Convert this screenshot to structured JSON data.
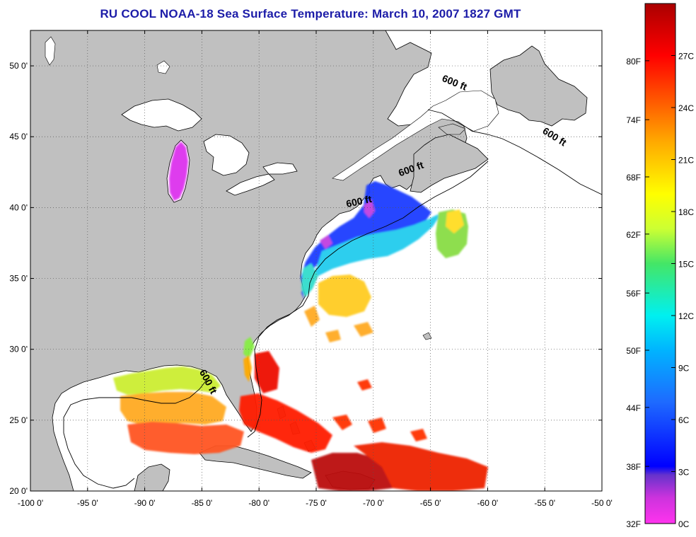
{
  "title": "RU COOL  NOAA-18  Sea Surface Temperature:  March 10, 2007 1827 GMT",
  "map": {
    "lon_range": [
      -100,
      -50
    ],
    "lat_range": [
      20,
      52.5
    ],
    "lon_ticks": [
      {
        "value": -100,
        "label": "-100 0'"
      },
      {
        "value": -95,
        "label": "-95 0'"
      },
      {
        "value": -90,
        "label": "-90 0'"
      },
      {
        "value": -85,
        "label": "-85 0'"
      },
      {
        "value": -80,
        "label": "-80 0'"
      },
      {
        "value": -75,
        "label": "-75 0'"
      },
      {
        "value": -70,
        "label": "-70 0'"
      },
      {
        "value": -65,
        "label": "-65 0'"
      },
      {
        "value": -60,
        "label": "-60 0'"
      },
      {
        "value": -55,
        "label": "-55 0'"
      },
      {
        "value": -50,
        "label": "-50 0'"
      }
    ],
    "lat_ticks": [
      {
        "value": 50,
        "label": "50 0'"
      },
      {
        "value": 45,
        "label": "45 0'"
      },
      {
        "value": 40,
        "label": "40 0'"
      },
      {
        "value": 35,
        "label": "35 0'"
      },
      {
        "value": 30,
        "label": "30 0'"
      },
      {
        "value": 25,
        "label": "25 0'"
      },
      {
        "value": 20,
        "label": "20 0'"
      }
    ],
    "contour_labels": [
      {
        "text": "600 ft",
        "lon": -63,
        "lat": 48.6,
        "angle": 22
      },
      {
        "text": "600 ft",
        "lon": -54.3,
        "lat": 44.8,
        "angle": 32
      },
      {
        "text": "600 ft",
        "lon": -66.6,
        "lat": 42.5,
        "angle": -20
      },
      {
        "text": "600 ft",
        "lon": -71.2,
        "lat": 40.2,
        "angle": -12
      },
      {
        "text": "600 ft",
        "lon": -84.7,
        "lat": 27.6,
        "angle": 62
      }
    ],
    "colors": {
      "land": "#c0c0c0",
      "ocean": "#ffffff",
      "coast": "#000000",
      "grid": "#555555"
    }
  },
  "colorbar": {
    "range_c": [
      0,
      30
    ],
    "left_labels": [
      "80F",
      "74F",
      "68F",
      "62F",
      "56F",
      "50F",
      "44F",
      "38F",
      "32F"
    ],
    "left_values_c": [
      26.7,
      23.3,
      20,
      16.7,
      13.3,
      10,
      6.7,
      3.3,
      0
    ],
    "right_labels": [
      "27C",
      "24C",
      "21C",
      "18C",
      "15C",
      "12C",
      "9C",
      "6C",
      "3C",
      "0C"
    ],
    "right_values_c": [
      27,
      24,
      21,
      18,
      15,
      12,
      9,
      6,
      3,
      0
    ],
    "stops": [
      {
        "c": 0,
        "color": "#ff33ee"
      },
      {
        "c": 1.5,
        "color": "#cc33dd"
      },
      {
        "c": 2.8,
        "color": "#6633cc"
      },
      {
        "c": 3.3,
        "color": "#0000ff"
      },
      {
        "c": 7,
        "color": "#1e6aff"
      },
      {
        "c": 10,
        "color": "#00b4ff"
      },
      {
        "c": 12,
        "color": "#00f0f0"
      },
      {
        "c": 15,
        "color": "#44e666"
      },
      {
        "c": 17,
        "color": "#ccff33"
      },
      {
        "c": 19,
        "color": "#ffff00"
      },
      {
        "c": 22,
        "color": "#ffaa00"
      },
      {
        "c": 25,
        "color": "#ff4400"
      },
      {
        "c": 27,
        "color": "#ff0000"
      },
      {
        "c": 30,
        "color": "#aa0000"
      }
    ]
  }
}
